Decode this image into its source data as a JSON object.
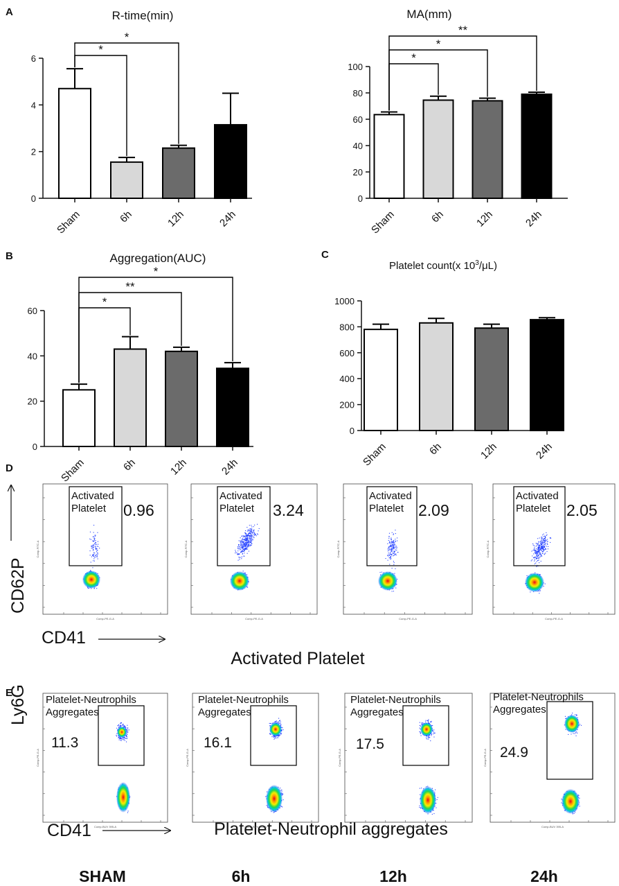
{
  "chart_data": [
    {
      "panel": "A",
      "type": "bar",
      "title": "R-time(min)",
      "categories": [
        "Sham",
        "6h",
        "12h",
        "24h"
      ],
      "values": [
        4.7,
        1.55,
        2.15,
        3.15
      ],
      "errors": [
        0.85,
        0.2,
        0.12,
        1.35
      ],
      "fills": [
        "#ffffff",
        "#d8d8d8",
        "#6b6b6b",
        "#000000"
      ],
      "ylim": [
        0,
        6
      ],
      "yticks": [
        "0",
        "2",
        "4",
        "6"
      ],
      "significance": [
        {
          "from": "Sham",
          "to": "6h",
          "label": "*"
        },
        {
          "from": "Sham",
          "to": "12h",
          "label": "*"
        }
      ]
    },
    {
      "panel": "",
      "type": "bar",
      "title": "MA(mm)",
      "categories": [
        "Sham",
        "6h",
        "12h",
        "24h"
      ],
      "values": [
        63.5,
        74.5,
        74,
        79
      ],
      "errors": [
        2,
        3,
        2,
        1.5
      ],
      "fills": [
        "#ffffff",
        "#d8d8d8",
        "#6b6b6b",
        "#000000"
      ],
      "ylim": [
        0,
        100
      ],
      "yticks": [
        "0",
        "20",
        "40",
        "60",
        "80",
        "100"
      ],
      "significance": [
        {
          "from": "Sham",
          "to": "6h",
          "label": "*"
        },
        {
          "from": "Sham",
          "to": "12h",
          "label": "*"
        },
        {
          "from": "Sham",
          "to": "24h",
          "label": "**"
        }
      ]
    },
    {
      "panel": "B",
      "type": "bar",
      "title": "Aggregation(AUC)",
      "categories": [
        "Sham",
        "6h",
        "12h",
        "24h"
      ],
      "values": [
        25,
        43,
        42,
        34.5
      ],
      "errors": [
        2.5,
        5.5,
        1.8,
        2.5
      ],
      "fills": [
        "#ffffff",
        "#d8d8d8",
        "#6b6b6b",
        "#000000"
      ],
      "ylim": [
        0,
        60
      ],
      "yticks": [
        "0",
        "20",
        "40",
        "60"
      ],
      "significance": [
        {
          "from": "Sham",
          "to": "6h",
          "label": "*"
        },
        {
          "from": "Sham",
          "to": "12h",
          "label": "**"
        },
        {
          "from": "Sham",
          "to": "24h",
          "label": "*"
        }
      ]
    },
    {
      "panel": "C",
      "type": "bar",
      "title": "Platelet count(x 10",
      "title_sup": "3",
      "title_end": "/μL)",
      "categories": [
        "Sham",
        "6h",
        "12h",
        "24h"
      ],
      "values": [
        780,
        830,
        790,
        855
      ],
      "errors": [
        40,
        35,
        30,
        15
      ],
      "fills": [
        "#ffffff",
        "#d8d8d8",
        "#6b6b6b",
        "#000000"
      ],
      "ylim": [
        0,
        1000
      ],
      "yticks": [
        "0",
        "200",
        "400",
        "600",
        "800",
        "1000"
      ],
      "significance": []
    }
  ],
  "flow_d": {
    "letter": "D",
    "gate_label_1": "Activated",
    "gate_label_2": "Platelet",
    "values": [
      "0.96",
      "3.24",
      "2.09",
      "2.05"
    ],
    "y_axis_label": "CD62P",
    "x_axis_label": "CD41",
    "caption": "Activated Platelet",
    "tiny_y": "Comp-FITC-A",
    "tiny_x": "Comp-PE-G-A"
  },
  "flow_e": {
    "letter": "E",
    "gate_label_1": "Platelet-Neutrophils",
    "gate_label_2": "Aggregates",
    "values": [
      "11.3",
      "16.1",
      "17.5",
      "24.9"
    ],
    "y_axis_label": "Ly6G",
    "x_axis_label": "CD41",
    "caption": "Platelet-Neutrophil aggregates",
    "tiny_y": "Comp-PE-G-A",
    "tiny_x": "Comp-BUV 395-A"
  },
  "group_labels": [
    "SHAM",
    "6h",
    "12h",
    "24h"
  ]
}
